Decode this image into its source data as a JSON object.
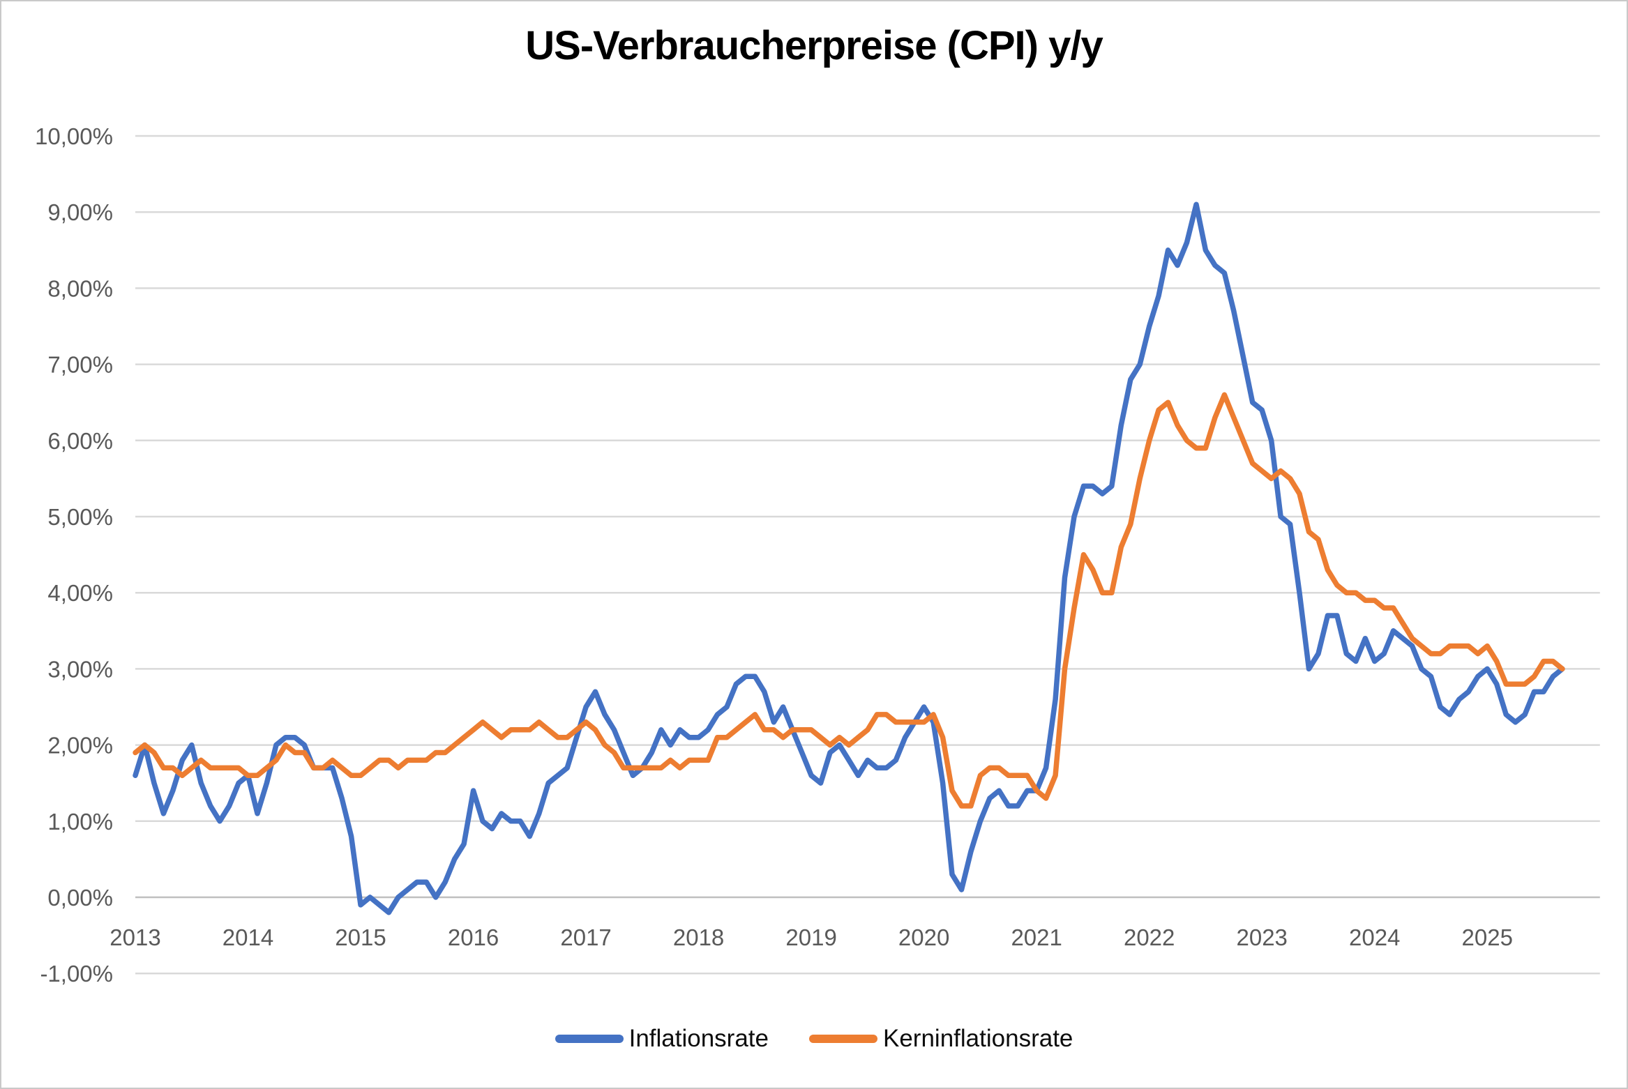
{
  "chart_data": {
    "type": "line",
    "title": "US-Verbraucherpreise (CPI) y/y",
    "x_start": "2013-01",
    "x_end": "2025-09",
    "x_tick_labels": [
      "2013",
      "2014",
      "2015",
      "2016",
      "2017",
      "2018",
      "2019",
      "2020",
      "2021",
      "2022",
      "2023",
      "2024",
      "2025"
    ],
    "y_tick_labels": [
      "10,00%",
      "9,00%",
      "8,00%",
      "7,00%",
      "6,00%",
      "5,00%",
      "4,00%",
      "3,00%",
      "2,00%",
      "1,00%",
      "0,00%",
      "-1,00%"
    ],
    "ylim": [
      -1,
      10
    ],
    "y_step": 1,
    "grid": true,
    "legend_position": "bottom",
    "colors": {
      "background": "#ffffff",
      "frame_border": "#c9c9c9",
      "gridline": "#d9d9d9",
      "zero_axis_line": "#bfbfbf",
      "tick_label": "#595959",
      "title": "#000000"
    },
    "series": [
      {
        "name": "Inflationsrate",
        "color": "#4472C4",
        "values": [
          1.6,
          2.0,
          1.5,
          1.1,
          1.4,
          1.8,
          2.0,
          1.5,
          1.2,
          1.0,
          1.2,
          1.5,
          1.6,
          1.1,
          1.5,
          2.0,
          2.1,
          2.1,
          2.0,
          1.7,
          1.7,
          1.7,
          1.3,
          0.8,
          -0.1,
          0.0,
          -0.1,
          -0.2,
          0.0,
          0.1,
          0.2,
          0.2,
          0.0,
          0.2,
          0.5,
          0.7,
          1.4,
          1.0,
          0.9,
          1.1,
          1.0,
          1.0,
          0.8,
          1.1,
          1.5,
          1.6,
          1.7,
          2.1,
          2.5,
          2.7,
          2.4,
          2.2,
          1.9,
          1.6,
          1.7,
          1.9,
          2.2,
          2.0,
          2.2,
          2.1,
          2.1,
          2.2,
          2.4,
          2.5,
          2.8,
          2.9,
          2.9,
          2.7,
          2.3,
          2.5,
          2.2,
          1.9,
          1.6,
          1.5,
          1.9,
          2.0,
          1.8,
          1.6,
          1.8,
          1.7,
          1.7,
          1.8,
          2.1,
          2.3,
          2.5,
          2.3,
          1.5,
          0.3,
          0.1,
          0.6,
          1.0,
          1.3,
          1.4,
          1.2,
          1.2,
          1.4,
          1.4,
          1.7,
          2.6,
          4.2,
          5.0,
          5.4,
          5.4,
          5.3,
          5.4,
          6.2,
          6.8,
          7.0,
          7.5,
          7.9,
          8.5,
          8.3,
          8.6,
          9.1,
          8.5,
          8.3,
          8.2,
          7.7,
          7.1,
          6.5,
          6.4,
          6.0,
          5.0,
          4.9,
          4.0,
          3.0,
          3.2,
          3.7,
          3.7,
          3.2,
          3.1,
          3.4,
          3.1,
          3.2,
          3.5,
          3.4,
          3.3,
          3.0,
          2.9,
          2.5,
          2.4,
          2.6,
          2.7,
          2.9,
          3.0,
          2.8,
          2.4,
          2.3,
          2.4,
          2.7,
          2.7,
          2.9,
          3.0
        ]
      },
      {
        "name": "Kerninflationsrate",
        "color": "#ED7D31",
        "values": [
          1.9,
          2.0,
          1.9,
          1.7,
          1.7,
          1.6,
          1.7,
          1.8,
          1.7,
          1.7,
          1.7,
          1.7,
          1.6,
          1.6,
          1.7,
          1.8,
          2.0,
          1.9,
          1.9,
          1.7,
          1.7,
          1.8,
          1.7,
          1.6,
          1.6,
          1.7,
          1.8,
          1.8,
          1.7,
          1.8,
          1.8,
          1.8,
          1.9,
          1.9,
          2.0,
          2.1,
          2.2,
          2.3,
          2.2,
          2.1,
          2.2,
          2.2,
          2.2,
          2.3,
          2.2,
          2.1,
          2.1,
          2.2,
          2.3,
          2.2,
          2.0,
          1.9,
          1.7,
          1.7,
          1.7,
          1.7,
          1.7,
          1.8,
          1.7,
          1.8,
          1.8,
          1.8,
          2.1,
          2.1,
          2.2,
          2.3,
          2.4,
          2.2,
          2.2,
          2.1,
          2.2,
          2.2,
          2.2,
          2.1,
          2.0,
          2.1,
          2.0,
          2.1,
          2.2,
          2.4,
          2.4,
          2.3,
          2.3,
          2.3,
          2.3,
          2.4,
          2.1,
          1.4,
          1.2,
          1.2,
          1.6,
          1.7,
          1.7,
          1.6,
          1.6,
          1.6,
          1.4,
          1.3,
          1.6,
          3.0,
          3.8,
          4.5,
          4.3,
          4.0,
          4.0,
          4.6,
          4.9,
          5.5,
          6.0,
          6.4,
          6.5,
          6.2,
          6.0,
          5.9,
          5.9,
          6.3,
          6.6,
          6.3,
          6.0,
          5.7,
          5.6,
          5.5,
          5.6,
          5.5,
          5.3,
          4.8,
          4.7,
          4.3,
          4.1,
          4.0,
          4.0,
          3.9,
          3.9,
          3.8,
          3.8,
          3.6,
          3.4,
          3.3,
          3.2,
          3.2,
          3.3,
          3.3,
          3.3,
          3.2,
          3.3,
          3.1,
          2.8,
          2.8,
          2.8,
          2.9,
          3.1,
          3.1,
          3.0
        ]
      }
    ]
  }
}
